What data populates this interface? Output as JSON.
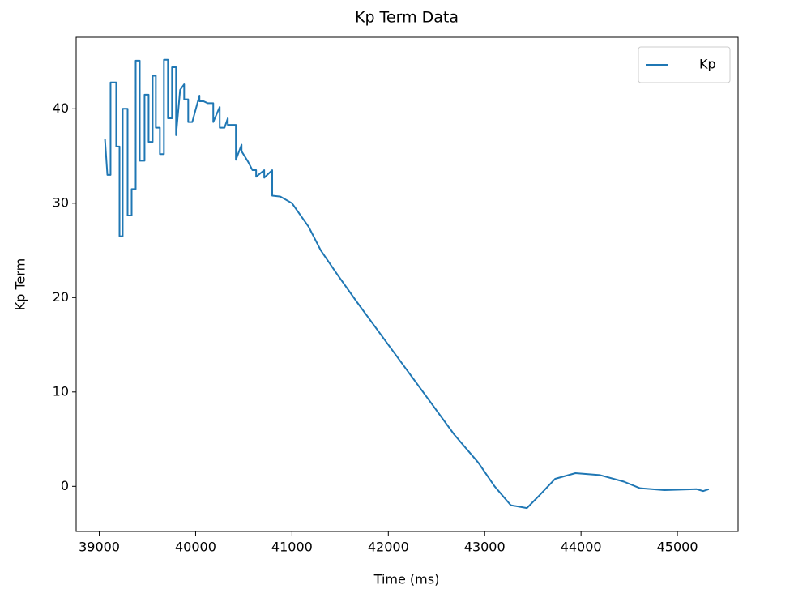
{
  "chart_data": {
    "type": "line",
    "title": "Kp Term Data",
    "x_label": "Time (ms)",
    "y_label": "Kp Term",
    "series": [
      {
        "name": "Kp",
        "color": "#1f77b4",
        "x": [
          39059,
          39084,
          39117,
          39117,
          39176,
          39176,
          39210,
          39210,
          39243,
          39243,
          39294,
          39294,
          39336,
          39336,
          39378,
          39378,
          39420,
          39420,
          39470,
          39470,
          39512,
          39512,
          39554,
          39554,
          39587,
          39587,
          39629,
          39629,
          39671,
          39671,
          39713,
          39713,
          39755,
          39755,
          39797,
          39797,
          39839,
          39881,
          39881,
          39923,
          39923,
          39965,
          40040,
          40040,
          40083,
          40124,
          40183,
          40183,
          40250,
          40250,
          40300,
          40334,
          40334,
          40418,
          40418,
          40477,
          40477,
          40544,
          40590,
          40628,
          40628,
          40712,
          40712,
          40795,
          40795,
          40879,
          41000,
          41173,
          41299,
          41467,
          41676,
          41928,
          42180,
          42432,
          42683,
          42935,
          43103,
          43271,
          43438,
          43564,
          43732,
          43942,
          44193,
          44445,
          44613,
          44865,
          45200,
          45267,
          45326
        ],
        "values": [
          36.8,
          33,
          33,
          42.8,
          42.8,
          36,
          36,
          26.5,
          26.5,
          40,
          40,
          28.7,
          28.7,
          31.5,
          31.5,
          45.1,
          45.1,
          34.5,
          34.5,
          41.5,
          41.5,
          36.5,
          36.5,
          43.5,
          43.5,
          38,
          38,
          35.2,
          35.2,
          45.2,
          45.2,
          39,
          39,
          44.4,
          44.4,
          37.2,
          42,
          42.6,
          41,
          41,
          38.6,
          38.6,
          41.4,
          40.8,
          40.8,
          40.6,
          40.6,
          38.6,
          40.2,
          38,
          38,
          39,
          38.3,
          38.3,
          34.6,
          36.2,
          35.5,
          34.4,
          33.5,
          33.5,
          32.8,
          33.5,
          32.7,
          33.5,
          30.8,
          30.7,
          30,
          27.5,
          25,
          22.5,
          19.5,
          16,
          12.5,
          9,
          5.5,
          2.5,
          0,
          -2,
          -2.3,
          -1,
          0.8,
          1.4,
          1.2,
          0.5,
          -0.2,
          -0.4,
          -0.3,
          -0.5,
          -0.3
        ]
      }
    ],
    "xlim": [
      38760,
      45630
    ],
    "ylim": [
      -4.78,
      47.58
    ],
    "xticks": [
      39000,
      40000,
      41000,
      42000,
      43000,
      44000,
      45000
    ],
    "yticks": [
      0,
      10,
      20,
      30,
      40
    ],
    "legend": "upper right"
  }
}
